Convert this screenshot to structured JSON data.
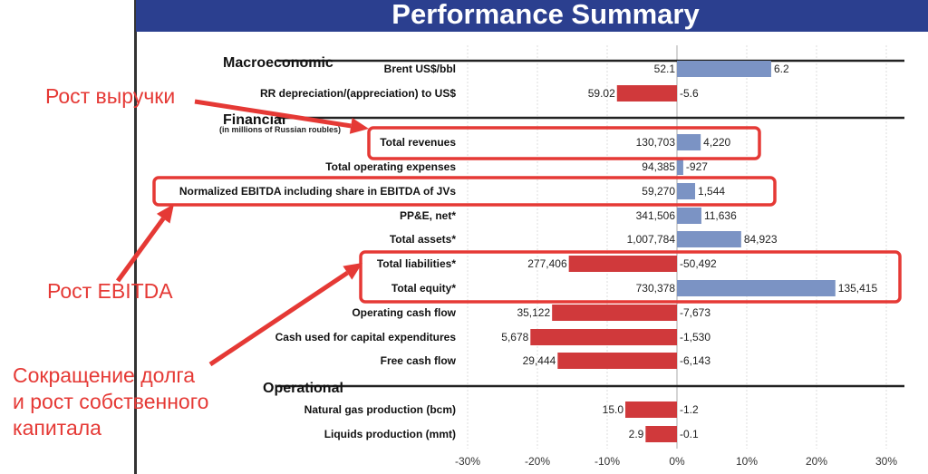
{
  "title": "Performance Summary",
  "annotations": {
    "revenue": "Рост выручки",
    "ebitda": "Рост EBITDA",
    "debt_lines": [
      "Сокращение долга",
      "и рост собственного",
      "капитала"
    ]
  },
  "colors": {
    "positive": "#7b93c4",
    "negative": "#d0393b",
    "title_bg": "#2b3f8f",
    "annotation": "#e53935"
  },
  "chart_data": {
    "type": "bar",
    "orientation": "horizontal",
    "title": "Performance Summary",
    "xlim": [
      -30,
      30
    ],
    "xticks": [
      "-30%",
      "-20%",
      "-10%",
      "0%",
      "10%",
      "20%",
      "30%"
    ],
    "xtick_values": [
      -30,
      -20,
      -10,
      0,
      10,
      20,
      30
    ],
    "grid": true,
    "sections": [
      {
        "name": "Macroeconomic",
        "subtitle": "",
        "rows": [
          {
            "label": "Brent US$/bbl",
            "value_label": "52.1",
            "change_label": "6.2",
            "pct": 13.5
          },
          {
            "label": "RR depreciation/(appreciation) to US$",
            "value_label": "59.02",
            "change_label": "-5.6",
            "pct": -8.6
          }
        ]
      },
      {
        "name": "Financial",
        "subtitle": "(in millions of Russian roubles)",
        "rows": [
          {
            "label": "Total revenues",
            "value_label": "130,703",
            "change_label": "4,220",
            "pct": 3.4
          },
          {
            "label": "Total operating expenses",
            "value_label": "94,385",
            "change_label": "-927",
            "pct": 0.9
          },
          {
            "label": "Normalized EBITDA including share in EBITDA of JVs",
            "value_label": "59,270",
            "change_label": "1,544",
            "pct": 2.6
          },
          {
            "label": "PP&E, net*",
            "value_label": "341,506",
            "change_label": "11,636",
            "pct": 3.5
          },
          {
            "label": "Total assets*",
            "value_label": "1,007,784",
            "change_label": "84,923",
            "pct": 9.2
          },
          {
            "label": "Total liabilities*",
            "value_label": "277,406",
            "change_label": "-50,492",
            "pct": -15.5
          },
          {
            "label": "Total equity*",
            "value_label": "730,378",
            "change_label": "135,415",
            "pct": 22.7
          },
          {
            "label": "Operating cash flow",
            "value_label": "35,122",
            "change_label": "-7,673",
            "pct": -17.9
          },
          {
            "label": "Cash used for capital expenditures",
            "value_label": "5,678",
            "change_label": "-1,530",
            "pct": -21.0
          },
          {
            "label": "Free cash flow",
            "value_label": "29,444",
            "change_label": "-6,143",
            "pct": -17.1
          }
        ]
      },
      {
        "name": "Operational",
        "subtitle": "",
        "rows": [
          {
            "label": "Natural gas production (bcm)",
            "value_label": "15.0",
            "change_label": "-1.2",
            "pct": -7.4
          },
          {
            "label": "Liquids production (mmt)",
            "value_label": "2.9",
            "change_label": "-0.1",
            "pct": -4.5
          }
        ]
      }
    ]
  }
}
